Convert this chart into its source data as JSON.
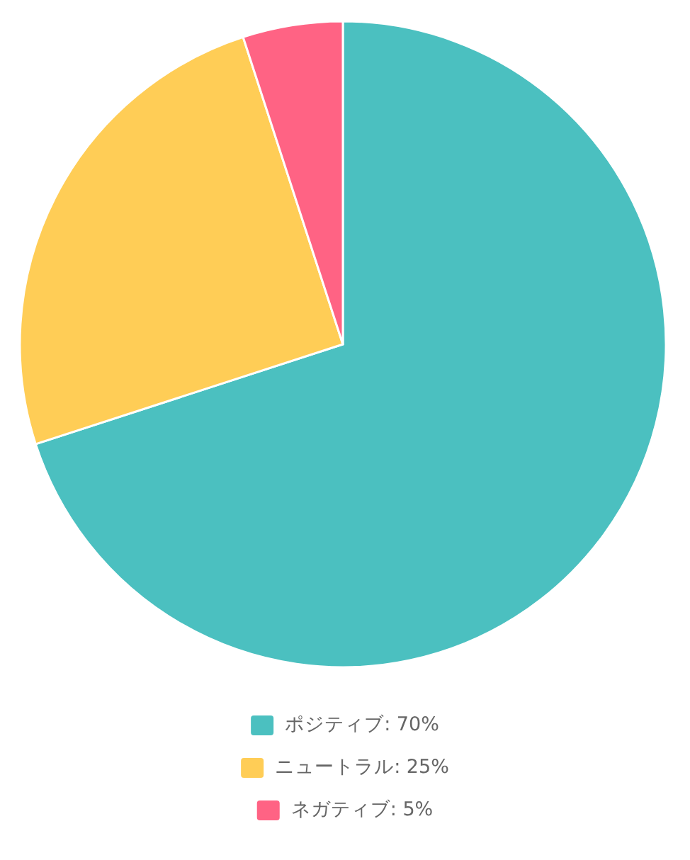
{
  "chart_data": {
    "type": "pie",
    "categories": [
      "ポジティブ: 70%",
      "ニュートラル: 25%",
      "ネガティブ: 5%"
    ],
    "values": [
      70,
      25,
      5
    ],
    "colors": [
      "#4bc0c0",
      "#ffcd56",
      "#ff6384"
    ],
    "legend": "bottom"
  }
}
